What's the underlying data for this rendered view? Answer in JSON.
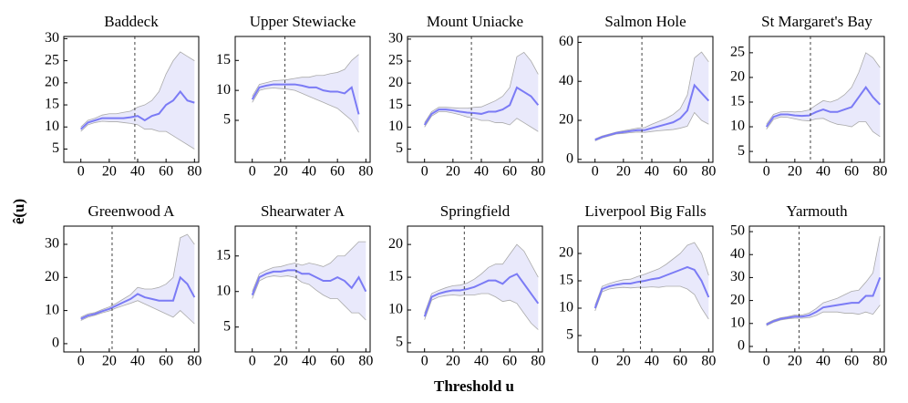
{
  "figure": {
    "xlabel": "Threshold u",
    "ylabel": "ê(u)"
  },
  "chart_data": [
    {
      "type": "line",
      "title": "Baddeck",
      "x": [
        0,
        5,
        10,
        15,
        20,
        25,
        30,
        35,
        40,
        45,
        50,
        55,
        60,
        65,
        70,
        75,
        80
      ],
      "values": [
        9.5,
        11,
        11.5,
        12,
        12,
        12,
        12,
        12.2,
        12.5,
        11.5,
        12.5,
        13,
        15,
        16,
        18,
        16,
        15.5
      ],
      "lower": [
        9,
        10.5,
        11,
        11.3,
        11.2,
        11.2,
        11,
        10.8,
        10.5,
        9.5,
        9.5,
        9,
        9,
        8,
        7,
        6,
        5
      ],
      "upper": [
        10,
        11.5,
        12,
        12.7,
        13,
        13,
        13.3,
        13.6,
        14.5,
        15,
        16,
        18,
        22,
        25,
        27,
        26,
        25
      ],
      "threshold": 38,
      "xlim": [
        -12,
        83
      ],
      "xticks": [
        0,
        20,
        40,
        60,
        80
      ],
      "ylim": [
        2,
        30.5
      ],
      "yticks": [
        5,
        10,
        15,
        20,
        25,
        30
      ],
      "color": "#7b7bf5",
      "band_color": "#e9e9fb"
    },
    {
      "type": "line",
      "title": "Upper Stewiacke",
      "x": [
        0,
        5,
        10,
        15,
        20,
        25,
        30,
        35,
        40,
        45,
        50,
        55,
        60,
        65,
        70,
        75,
        80
      ],
      "values": [
        8.5,
        10.5,
        10.8,
        11,
        11,
        11,
        11,
        10.8,
        10.5,
        10.5,
        10,
        9.8,
        9.8,
        9.5,
        10.5,
        6,
        null
      ],
      "lower": [
        8,
        10,
        10.3,
        10.4,
        10.3,
        10.2,
        10,
        9.5,
        9,
        8.5,
        8,
        7.5,
        7,
        6,
        5,
        3,
        null
      ],
      "upper": [
        9,
        11,
        11.3,
        11.6,
        11.7,
        11.8,
        12,
        12.2,
        12.2,
        12.5,
        12.5,
        12.8,
        13,
        13.5,
        15,
        16,
        null
      ],
      "threshold": 23,
      "xlim": [
        -12,
        83
      ],
      "xticks": [
        0,
        20,
        40,
        60,
        80
      ],
      "ylim": [
        -2,
        19
      ],
      "yticks": [
        5,
        10,
        15
      ],
      "color": "#7b7bf5",
      "band_color": "#e9e9fb"
    },
    {
      "type": "line",
      "title": "Mount Uniacke",
      "x": [
        0,
        5,
        10,
        15,
        20,
        25,
        30,
        35,
        40,
        45,
        50,
        55,
        60,
        65,
        70,
        75,
        80
      ],
      "values": [
        10.5,
        13,
        14,
        14,
        13.8,
        13.5,
        13.3,
        13.2,
        13,
        13.5,
        13.5,
        14,
        15,
        19,
        18,
        17,
        15
      ],
      "lower": [
        10,
        12.5,
        13.5,
        13.5,
        13.2,
        12.8,
        12.3,
        12,
        11.5,
        11.5,
        11,
        11,
        10.5,
        12,
        11,
        10,
        9
      ],
      "upper": [
        11,
        13.5,
        14.5,
        14.5,
        14.4,
        14.3,
        14.3,
        14.5,
        14.6,
        15.3,
        16,
        17,
        19,
        26,
        27,
        25,
        22
      ],
      "threshold": 33,
      "xlim": [
        -12,
        83
      ],
      "xticks": [
        0,
        20,
        40,
        60,
        80
      ],
      "ylim": [
        2,
        30.6
      ],
      "yticks": [
        5,
        10,
        15,
        20,
        25,
        30
      ],
      "color": "#7b7bf5",
      "band_color": "#e9e9fb"
    },
    {
      "type": "line",
      "title": "Salmon Hole",
      "x": [
        0,
        5,
        10,
        15,
        20,
        25,
        30,
        35,
        40,
        45,
        50,
        55,
        60,
        65,
        70,
        75,
        80
      ],
      "values": [
        10,
        11.5,
        12.5,
        13.5,
        14,
        14.5,
        15,
        15,
        16,
        17,
        18,
        19,
        21,
        25,
        38,
        34,
        30
      ],
      "lower": [
        9.5,
        11,
        12,
        13,
        13.3,
        13.7,
        14,
        13.8,
        14.3,
        14.7,
        15,
        15.3,
        16,
        17,
        24,
        20,
        18
      ],
      "upper": [
        10.5,
        12,
        13,
        14,
        14.7,
        15.3,
        16,
        16.3,
        18,
        19.5,
        21,
        23,
        26,
        33,
        52,
        55,
        50
      ],
      "threshold": 33,
      "xlim": [
        -12,
        83
      ],
      "xticks": [
        0,
        20,
        40,
        60,
        80
      ],
      "ylim": [
        -1.5,
        63
      ],
      "yticks": [
        0,
        20,
        40,
        60
      ],
      "color": "#7b7bf5",
      "band_color": "#e9e9fb"
    },
    {
      "type": "line",
      "title": "St Margaret's Bay",
      "x": [
        0,
        5,
        10,
        15,
        20,
        25,
        30,
        35,
        40,
        45,
        50,
        55,
        60,
        65,
        70,
        75,
        80
      ],
      "values": [
        10,
        12,
        12.5,
        12.5,
        12.3,
        12.2,
        12.3,
        13,
        13.5,
        13,
        13,
        13.5,
        14,
        16,
        18,
        16,
        14.5
      ],
      "lower": [
        9.5,
        11.5,
        12,
        11.9,
        11.6,
        11.3,
        11.2,
        11.6,
        11.7,
        11,
        10.5,
        10.3,
        10,
        11,
        11,
        9,
        8
      ],
      "upper": [
        10.5,
        12.5,
        13,
        13.1,
        13,
        13.1,
        13.4,
        14.4,
        15.3,
        15,
        15.5,
        16.5,
        18,
        21,
        25,
        24,
        22
      ],
      "threshold": 31,
      "xlim": [
        -12,
        83
      ],
      "xticks": [
        0,
        20,
        40,
        60,
        80
      ],
      "ylim": [
        2.8,
        28.3
      ],
      "yticks": [
        5,
        10,
        15,
        20,
        25
      ],
      "color": "#7b7bf5",
      "band_color": "#e9e9fb"
    },
    {
      "type": "line",
      "title": "Greenwood A",
      "x": [
        0,
        5,
        10,
        15,
        20,
        25,
        30,
        35,
        40,
        45,
        50,
        55,
        60,
        65,
        70,
        75,
        80
      ],
      "values": [
        7.5,
        8.5,
        9,
        9.8,
        10.5,
        11.5,
        12.5,
        13.5,
        15,
        14,
        13.5,
        13,
        13,
        13,
        20,
        18,
        14
      ],
      "lower": [
        7,
        8,
        8.6,
        9.3,
        9.9,
        10.8,
        11.5,
        12.2,
        13,
        12,
        11,
        10,
        9,
        8,
        10,
        8,
        6
      ],
      "upper": [
        8,
        9,
        9.4,
        10.3,
        11.1,
        12.2,
        13.5,
        14.8,
        17,
        16.5,
        16.5,
        17,
        18,
        20,
        32,
        33,
        30
      ],
      "threshold": 22,
      "xlim": [
        -12,
        83
      ],
      "xticks": [
        0,
        20,
        40,
        60,
        80
      ],
      "ylim": [
        -2.5,
        35.5
      ],
      "yticks": [
        0,
        10,
        20,
        30
      ],
      "color": "#7b7bf5",
      "band_color": "#e9e9fb"
    },
    {
      "type": "line",
      "title": "Shearwater A",
      "x": [
        0,
        5,
        10,
        15,
        20,
        25,
        30,
        35,
        40,
        45,
        50,
        55,
        60,
        65,
        70,
        75,
        80
      ],
      "values": [
        9.5,
        12,
        12.5,
        12.8,
        12.8,
        13,
        13,
        12.5,
        12.5,
        12,
        11.5,
        11.5,
        12,
        11.5,
        10.5,
        12,
        10
      ],
      "lower": [
        9,
        11.5,
        12,
        12.2,
        12.1,
        12.2,
        12,
        11.3,
        11,
        10.2,
        9.5,
        9,
        9,
        8,
        7,
        7,
        6
      ],
      "upper": [
        10,
        12.5,
        13,
        13.4,
        13.5,
        13.8,
        14,
        13.7,
        14,
        13.8,
        13.5,
        14,
        15,
        15,
        16,
        17,
        17
      ],
      "threshold": 31,
      "xlim": [
        -12,
        83
      ],
      "xticks": [
        0,
        20,
        40,
        60,
        80
      ],
      "ylim": [
        1.5,
        19.2
      ],
      "yticks": [
        5,
        10,
        15
      ],
      "color": "#7b7bf5",
      "band_color": "#e9e9fb"
    },
    {
      "type": "line",
      "title": "Springfield",
      "x": [
        0,
        5,
        10,
        15,
        20,
        25,
        30,
        35,
        40,
        45,
        50,
        55,
        60,
        65,
        70,
        75,
        80
      ],
      "values": [
        9,
        12,
        12.5,
        12.8,
        13,
        13,
        13.2,
        13.5,
        14,
        14.5,
        14.5,
        14,
        15,
        15.5,
        14,
        12.5,
        11
      ],
      "lower": [
        8.5,
        11.5,
        12,
        12.2,
        12.3,
        12.2,
        12.3,
        12.3,
        12.5,
        12.5,
        12,
        11.3,
        11.5,
        11,
        9.5,
        8,
        7
      ],
      "upper": [
        9.5,
        12.5,
        13,
        13.4,
        13.7,
        13.8,
        14.1,
        14.7,
        15.5,
        16.5,
        17,
        17,
        18.5,
        20,
        19,
        17,
        15
      ],
      "threshold": 28,
      "xlim": [
        -12,
        83
      ],
      "xticks": [
        0,
        20,
        40,
        60,
        80
      ],
      "ylim": [
        3.6,
        22.8
      ],
      "yticks": [
        5,
        10,
        15,
        20
      ],
      "color": "#7b7bf5",
      "band_color": "#e9e9fb"
    },
    {
      "type": "line",
      "title": "Liverpool Big Falls",
      "x": [
        0,
        5,
        10,
        15,
        20,
        25,
        30,
        35,
        40,
        45,
        50,
        55,
        60,
        65,
        70,
        75,
        80
      ],
      "values": [
        10,
        13.5,
        14,
        14.3,
        14.5,
        14.5,
        14.8,
        15,
        15.3,
        15.5,
        16,
        16.5,
        17,
        17.5,
        17,
        15,
        12
      ],
      "lower": [
        9.5,
        13,
        13.5,
        13.7,
        13.8,
        13.7,
        13.8,
        13.8,
        13.9,
        13.8,
        14,
        14,
        14,
        13.5,
        12.5,
        10,
        8
      ],
      "upper": [
        10.5,
        14,
        14.5,
        14.9,
        15.2,
        15.3,
        15.8,
        16.2,
        16.7,
        17.2,
        18,
        19,
        20,
        21.5,
        22,
        20,
        16
      ],
      "threshold": 32,
      "xlim": [
        -12,
        83
      ],
      "xticks": [
        0,
        20,
        40,
        60,
        80
      ],
      "ylim": [
        2,
        25
      ],
      "yticks": [
        5,
        10,
        15,
        20
      ],
      "color": "#7b7bf5",
      "band_color": "#e9e9fb"
    },
    {
      "type": "line",
      "title": "Yarmouth",
      "x": [
        0,
        5,
        10,
        15,
        20,
        25,
        30,
        35,
        40,
        45,
        50,
        55,
        60,
        65,
        70,
        75,
        80
      ],
      "values": [
        9.5,
        11,
        12,
        12.5,
        13,
        13,
        13.5,
        15,
        17,
        17.5,
        18,
        18.5,
        19,
        19,
        22,
        22,
        30
      ],
      "lower": [
        9,
        10.5,
        11.5,
        12,
        12.3,
        12.3,
        12.5,
        13.5,
        15,
        15,
        15,
        14.5,
        14.5,
        14,
        15,
        14,
        18
      ],
      "upper": [
        10,
        11.5,
        12.5,
        13,
        13.7,
        13.7,
        14.5,
        16.5,
        19,
        20,
        21,
        22.5,
        24,
        24.5,
        28,
        32,
        48
      ],
      "threshold": 23,
      "xlim": [
        -12,
        83
      ],
      "xticks": [
        0,
        20,
        40,
        60,
        80
      ],
      "ylim": [
        -2.4,
        52.4
      ],
      "yticks": [
        0,
        10,
        20,
        30,
        40,
        50
      ],
      "color": "#7b7bf5",
      "band_color": "#e9e9fb"
    }
  ]
}
